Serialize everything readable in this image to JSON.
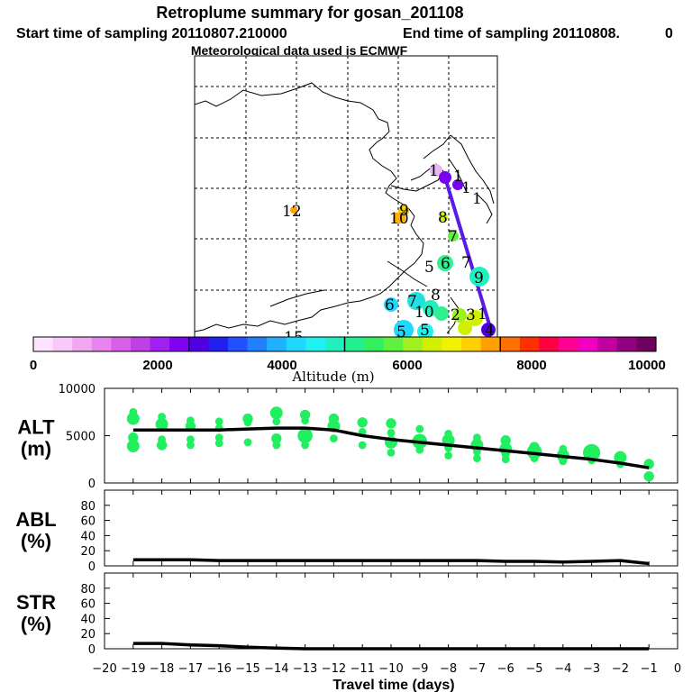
{
  "header": {
    "title": "Retroplume summary for gosan_201108",
    "start_label": "Start time of sampling 20110807.210000",
    "end_label": "End time of sampling 20110808.",
    "end_value": "0",
    "met_label": "Meteorological data used is ECMWF"
  },
  "colorbar": {
    "xlabel": "Altitude (m)",
    "tick_labels": [
      "0",
      "2000",
      "4000",
      "6000",
      "8000",
      "10000"
    ],
    "colors": [
      "#fde3ff",
      "#f8c8f8",
      "#f0a8f0",
      "#e884f0",
      "#d860e8",
      "#c040e8",
      "#a020f0",
      "#8000f0",
      "#5000e0",
      "#2020f0",
      "#2050ff",
      "#2080ff",
      "#20b0ff",
      "#20d8ff",
      "#20f0f0",
      "#20f0c0",
      "#20f090",
      "#30f060",
      "#60f040",
      "#a0f020",
      "#d0f000",
      "#f0f000",
      "#ffd000",
      "#ffa000",
      "#ff7000",
      "#ff3000",
      "#ff0040",
      "#ff0090",
      "#f000c0",
      "#c000a0",
      "#900080",
      "#700060"
    ]
  },
  "map": {
    "plume_labels": [
      "1",
      "1",
      "1",
      "1",
      "12",
      "9",
      "10",
      "8",
      "7",
      "5",
      "6",
      "7",
      "9",
      "6",
      "7",
      "10",
      "8",
      "2",
      "3",
      "1",
      "5",
      "5",
      "15",
      "4"
    ]
  },
  "chart_data": [
    {
      "type": "line",
      "panel": "ALT",
      "ylabel_top": "ALT",
      "ylabel_bottom": "(m)",
      "ylim": [
        0,
        10000
      ],
      "yticks": [
        "0",
        "5000",
        "10000"
      ],
      "x": [
        -19,
        -18,
        -17,
        -16,
        -15,
        -14,
        -13,
        -12,
        -11,
        -10,
        -9,
        -8,
        -7,
        -6,
        -5,
        -4,
        -3,
        -2,
        -1
      ],
      "values": [
        5600,
        5600,
        5600,
        5600,
        5700,
        5800,
        5800,
        5600,
        5000,
        4600,
        4300,
        4000,
        3700,
        3400,
        3100,
        2800,
        2500,
        2100,
        1600
      ],
      "cluster_color": "#20f060",
      "clusters": [
        [
          [
            7500,
            1
          ],
          [
            6800,
            2
          ],
          [
            4800,
            1.5
          ],
          [
            3900,
            2
          ]
        ],
        [
          [
            7000,
            1
          ],
          [
            6200,
            2
          ],
          [
            4600,
            1
          ],
          [
            4000,
            1.5
          ]
        ],
        [
          [
            6600,
            1
          ],
          [
            6000,
            1.5
          ],
          [
            4600,
            1
          ],
          [
            4000,
            1
          ]
        ],
        [
          [
            6500,
            1
          ],
          [
            5800,
            1
          ],
          [
            4800,
            1
          ],
          [
            4200,
            1
          ]
        ],
        [
          [
            6800,
            1.5
          ],
          [
            6400,
            1
          ],
          [
            4300,
            1
          ]
        ],
        [
          [
            7400,
            2
          ],
          [
            6500,
            1
          ],
          [
            4700,
            1.5
          ],
          [
            4000,
            1
          ]
        ],
        [
          [
            7200,
            1.5
          ],
          [
            6600,
            1
          ],
          [
            5000,
            2.5
          ],
          [
            4000,
            1
          ]
        ],
        [
          [
            6800,
            1.5
          ],
          [
            6000,
            2
          ],
          [
            4700,
            1
          ]
        ],
        [
          [
            6400,
            1.5
          ],
          [
            5400,
            1
          ],
          [
            4000,
            1
          ]
        ],
        [
          [
            6300,
            1.5
          ],
          [
            5300,
            1
          ],
          [
            4300,
            2
          ],
          [
            3200,
            1
          ]
        ],
        [
          [
            5700,
            1
          ],
          [
            4400,
            2.5
          ],
          [
            3500,
            1
          ]
        ],
        [
          [
            5200,
            1
          ],
          [
            4500,
            2
          ],
          [
            3700,
            1
          ],
          [
            2900,
            1
          ]
        ],
        [
          [
            4800,
            1
          ],
          [
            4000,
            2
          ],
          [
            3300,
            1
          ],
          [
            2600,
            1
          ]
        ],
        [
          [
            4500,
            1.5
          ],
          [
            3600,
            2
          ],
          [
            3000,
            1
          ],
          [
            2500,
            1
          ]
        ],
        [
          [
            3800,
            1.5
          ],
          [
            3300,
            2.5
          ],
          [
            2600,
            1
          ]
        ],
        [
          [
            3600,
            1
          ],
          [
            2900,
            2
          ],
          [
            2300,
            1
          ]
        ],
        [
          [
            3200,
            3
          ],
          [
            2400,
            1
          ]
        ],
        [
          [
            2700,
            2
          ],
          [
            2000,
            1
          ]
        ],
        [
          [
            2000,
            1.5
          ],
          [
            700,
            1.5
          ]
        ]
      ]
    },
    {
      "type": "line",
      "panel": "ABL",
      "ylabel_top": "ABL",
      "ylabel_bottom": "(%)",
      "ylim": [
        0,
        100
      ],
      "yticks": [
        "0",
        "20",
        "40",
        "60",
        "80"
      ],
      "x": [
        -19,
        -18,
        -17,
        -16,
        -15,
        -14,
        -13,
        -12,
        -11,
        -10,
        -9,
        -8,
        -7,
        -6,
        -5,
        -4,
        -3,
        -2,
        -1
      ],
      "values": [
        8,
        8,
        8,
        7,
        7,
        7,
        7,
        7,
        7,
        7,
        7,
        7,
        7,
        6,
        6,
        5,
        6,
        7,
        3
      ]
    },
    {
      "type": "line",
      "panel": "STR",
      "ylabel_top": "STR",
      "ylabel_bottom": "(%)",
      "ylim": [
        0,
        100
      ],
      "yticks": [
        "0",
        "20",
        "40",
        "60",
        "80"
      ],
      "x": [
        -19,
        -18,
        -17,
        -16,
        -15,
        -14,
        -13,
        -12,
        -11,
        -10,
        -9,
        -8,
        -7,
        -6,
        -5,
        -4,
        -3,
        -2,
        -1
      ],
      "values": [
        7,
        7,
        5,
        4,
        2,
        1,
        0,
        0,
        0,
        0,
        0,
        0,
        0,
        0,
        0,
        0,
        0,
        0,
        0
      ]
    }
  ],
  "xaxis": {
    "label": "Travel time (days)",
    "xlim": [
      -20,
      0
    ],
    "tick_labels": [
      "−20",
      "−19",
      "−18",
      "−17",
      "−16",
      "−15",
      "−14",
      "−13",
      "−12",
      "−11",
      "−10",
      "−9",
      "−8",
      "−7",
      "−6",
      "−5",
      "−4",
      "−3",
      "−2",
      "−1",
      "0"
    ]
  }
}
